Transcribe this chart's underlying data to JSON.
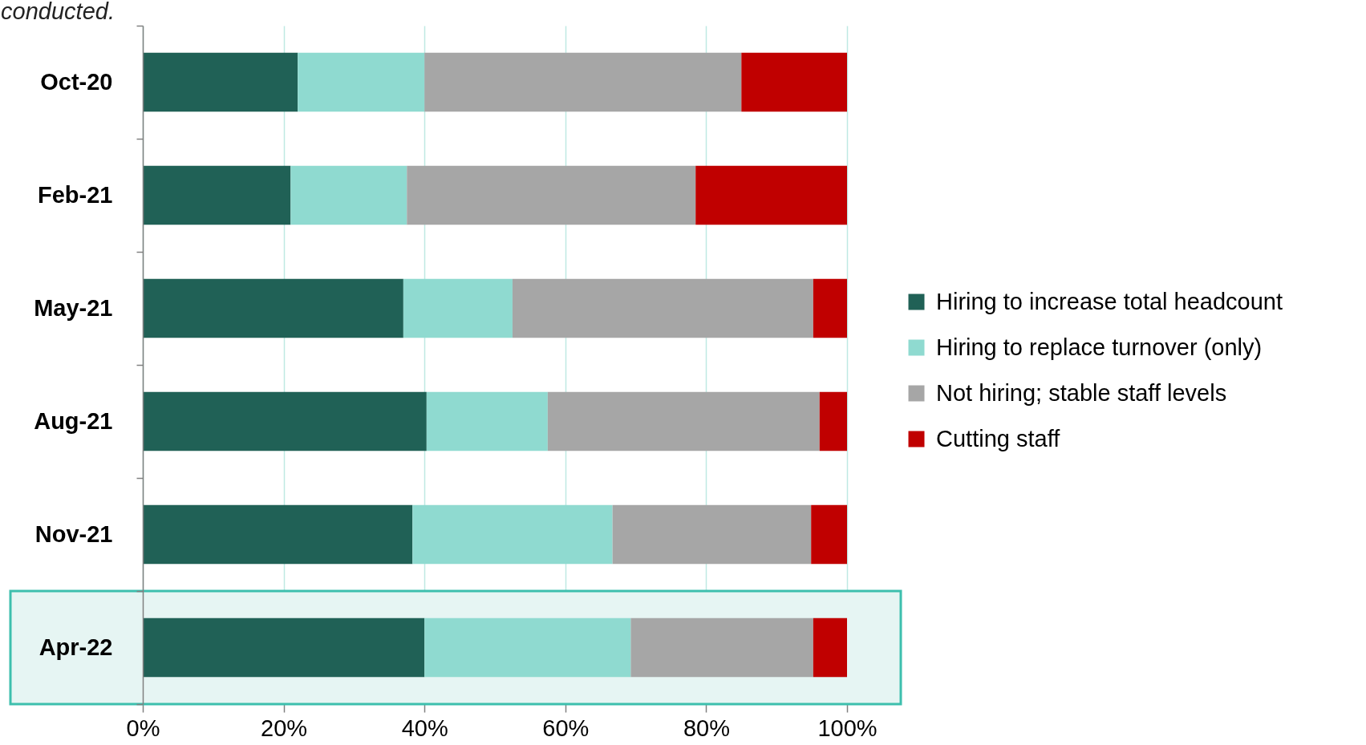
{
  "chart_data": {
    "type": "bar",
    "orientation": "horizontal",
    "stacked": true,
    "categories": [
      "Oct-20",
      "Feb-21",
      "May-21",
      "Aug-21",
      "Nov-21",
      "Apr-22"
    ],
    "series": [
      {
        "name": "Hiring to increase total headcount",
        "color": "#206156",
        "values": [
          22,
          21,
          37,
          40.3,
          38.3,
          40
        ]
      },
      {
        "name": "Hiring to replace turnover (only)",
        "color": "#8fdad0",
        "values": [
          18,
          16.5,
          15.5,
          17.2,
          28.4,
          29.3
        ]
      },
      {
        "name": "Not hiring; stable staff levels",
        "color": "#a6a6a6",
        "values": [
          45,
          41,
          42.7,
          38.6,
          28.2,
          25.9
        ]
      },
      {
        "name": "Cutting staff",
        "color": "#c00000",
        "values": [
          15,
          21.5,
          4.8,
          3.9,
          5.1,
          4.8
        ]
      }
    ],
    "xlim": [
      0,
      100
    ],
    "xticks": [
      {
        "value": 0,
        "label": "0%"
      },
      {
        "value": 20,
        "label": "20%"
      },
      {
        "value": 40,
        "label": "40%"
      },
      {
        "value": 60,
        "label": "60%"
      },
      {
        "value": 80,
        "label": "80%"
      },
      {
        "value": 100,
        "label": "100%"
      }
    ],
    "grid": "x",
    "legend": "right",
    "bands": [
      {
        "axis": "y",
        "from": "Apr-22",
        "to": "Apr-22",
        "color": "#e6f5f3"
      }
    ],
    "annotations": [
      "conducted."
    ]
  }
}
